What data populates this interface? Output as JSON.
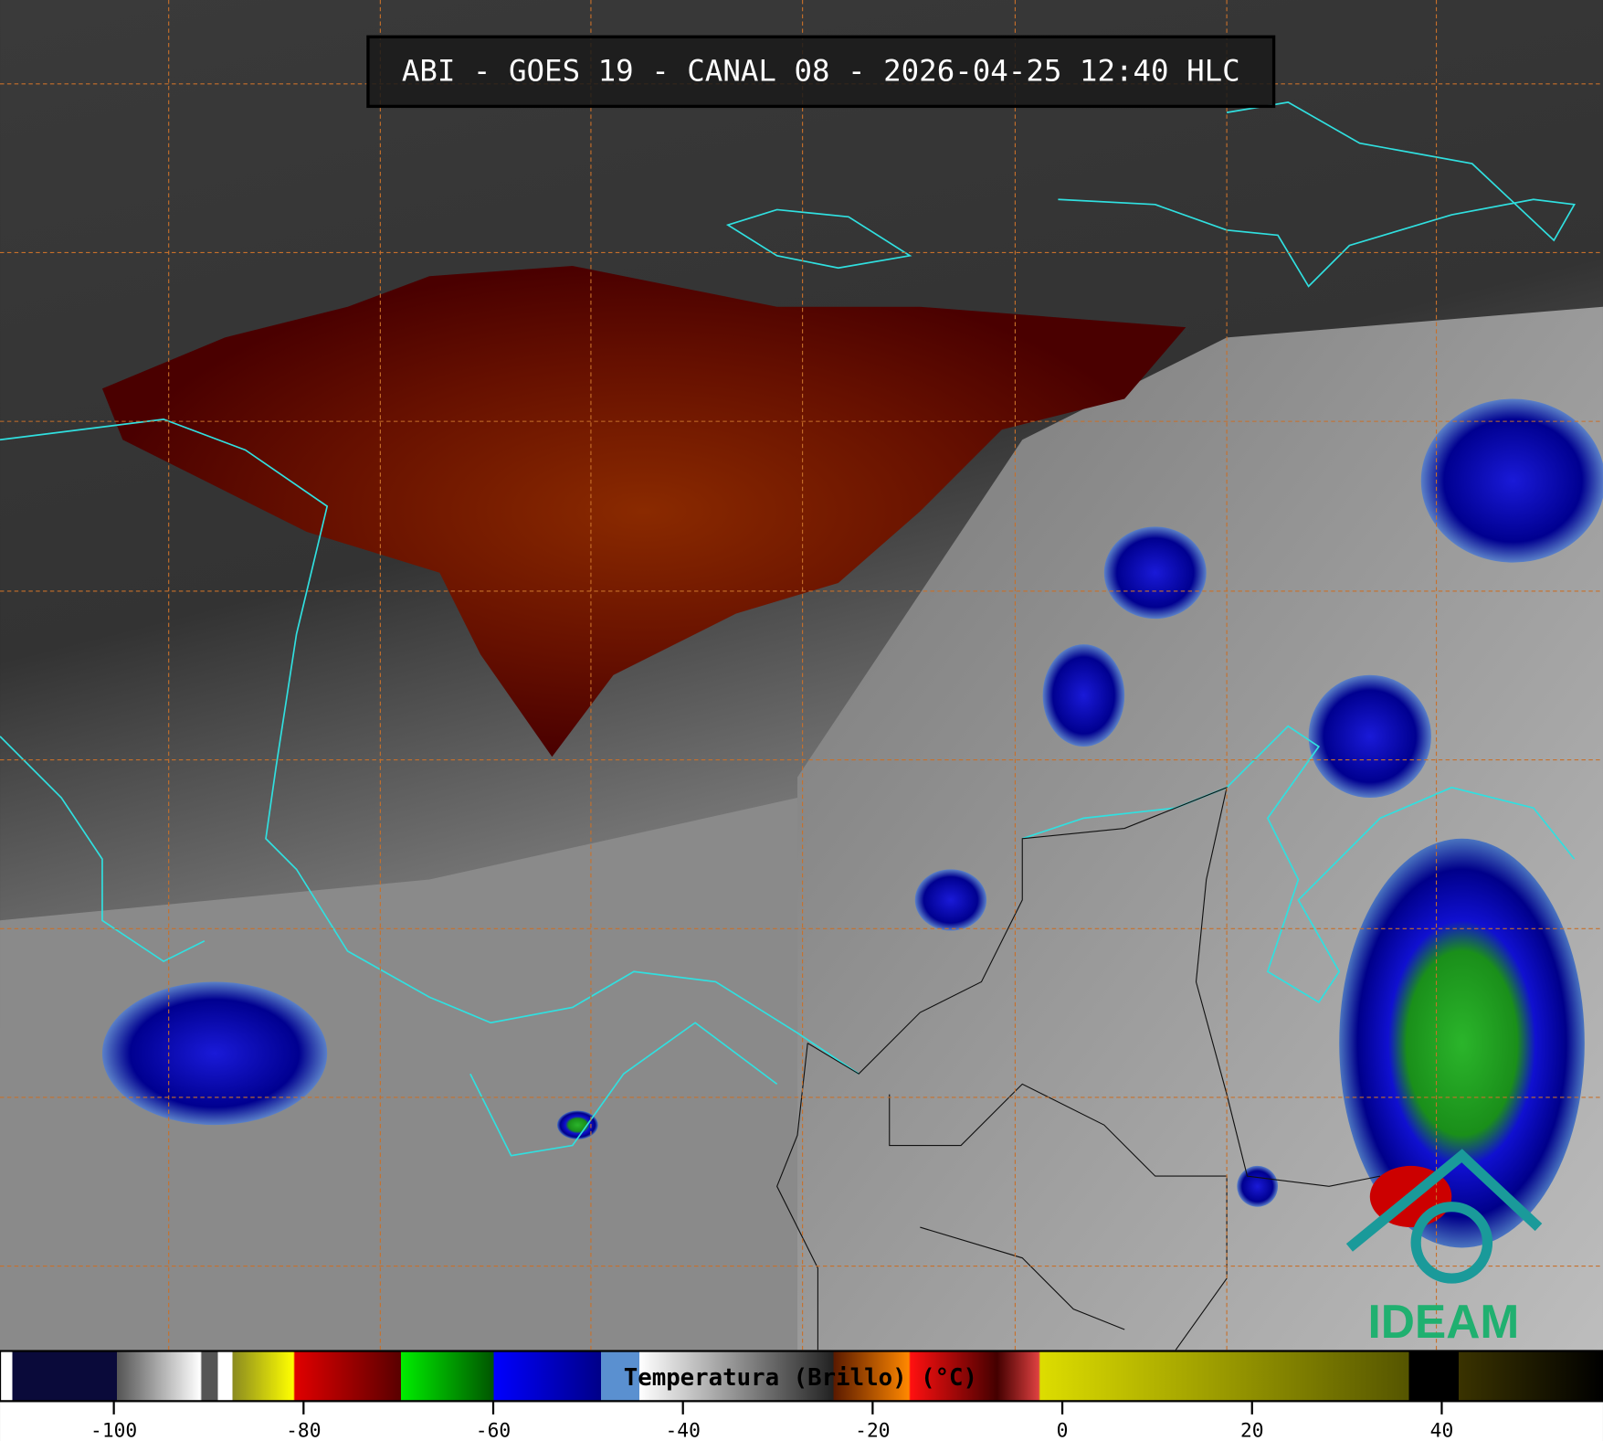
{
  "title": "ABI - GOES 19 - CANAL 08 - 2026-04-25 12:40 HLC",
  "colorbar": {
    "label": "Temperatura (Brillo) (°C)",
    "lim": [
      -112,
      57
    ],
    "ticks": [
      -100,
      -80,
      -60,
      -40,
      -20,
      0,
      20,
      40
    ]
  },
  "logo": "IDEAM"
}
